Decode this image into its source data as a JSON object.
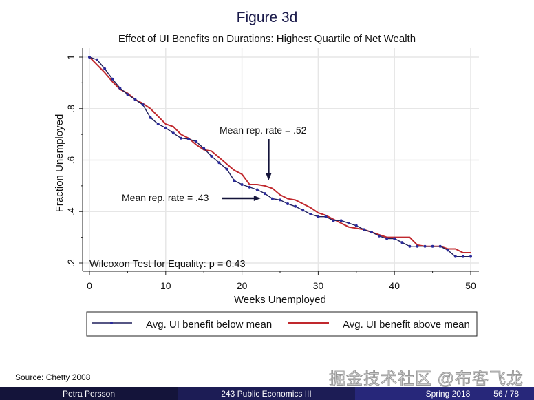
{
  "slide": {
    "source": "Source:  Chetty 2008",
    "watermark": "掘金技术社区 @布客飞龙",
    "footer": {
      "author": "Petra Persson",
      "course": "243 Public Economics III",
      "term": "Spring 2018",
      "page": "56 / 78"
    }
  },
  "colors": {
    "below": "#1f1f5c",
    "below_marker": "#2a2a9a",
    "above": "#c0282d",
    "grid": "#e6e6e6",
    "footer": "#1c1c55"
  },
  "chart_data": {
    "type": "line",
    "title": "Figure 3d",
    "subtitle": "Effect of UI Benefits on Durations: Highest Quartile of Net Wealth",
    "xlabel": "Weeks Unemployed",
    "ylabel": "Fraction Unemployed",
    "xlim": [
      0,
      50
    ],
    "ylim": [
      0.2,
      1.0
    ],
    "xticks": [
      "0",
      "10",
      "20",
      "30",
      "40",
      "50"
    ],
    "yticks": [
      ".2",
      ".4",
      ".6",
      ".8",
      "1"
    ],
    "grid": true,
    "legend_position": "bottom",
    "x": [
      0,
      1,
      2,
      3,
      4,
      5,
      6,
      7,
      8,
      9,
      10,
      11,
      12,
      13,
      14,
      15,
      16,
      17,
      18,
      19,
      20,
      21,
      22,
      23,
      24,
      25,
      26,
      27,
      28,
      29,
      30,
      31,
      32,
      33,
      34,
      35,
      36,
      37,
      38,
      39,
      40,
      41,
      42,
      43,
      44,
      45,
      46,
      47,
      48,
      49,
      50
    ],
    "series": [
      {
        "name": "Avg. UI benefit below mean",
        "markers": true,
        "values": [
          1.0,
          0.99,
          0.955,
          0.915,
          0.88,
          0.855,
          0.835,
          0.815,
          0.765,
          0.74,
          0.725,
          0.705,
          0.685,
          0.682,
          0.672,
          0.645,
          0.615,
          0.59,
          0.565,
          0.52,
          0.505,
          0.495,
          0.485,
          0.47,
          0.45,
          0.445,
          0.43,
          0.42,
          0.405,
          0.39,
          0.38,
          0.38,
          0.365,
          0.365,
          0.355,
          0.345,
          0.33,
          0.32,
          0.305,
          0.295,
          0.295,
          0.28,
          0.265,
          0.265,
          0.265,
          0.265,
          0.265,
          0.25,
          0.225,
          0.225,
          0.225
        ]
      },
      {
        "name": "Avg. UI benefit above mean",
        "markers": false,
        "values": [
          1.0,
          0.97,
          0.94,
          0.905,
          0.875,
          0.86,
          0.835,
          0.82,
          0.8,
          0.77,
          0.74,
          0.73,
          0.7,
          0.685,
          0.66,
          0.64,
          0.635,
          0.61,
          0.585,
          0.56,
          0.545,
          0.505,
          0.505,
          0.5,
          0.49,
          0.465,
          0.45,
          0.445,
          0.43,
          0.415,
          0.395,
          0.385,
          0.37,
          0.355,
          0.34,
          0.335,
          0.33,
          0.32,
          0.31,
          0.3,
          0.3,
          0.3,
          0.3,
          0.27,
          0.265,
          0.265,
          0.265,
          0.255,
          0.255,
          0.24,
          0.24
        ]
      }
    ],
    "annotations": [
      {
        "text": "Mean rep. rate = .52",
        "arrow": "down",
        "at": [
          23.5,
          0.505
        ]
      },
      {
        "text": "Mean rep. rate = .43",
        "arrow": "right",
        "at": [
          23,
          0.47
        ]
      },
      {
        "text": "Wilcoxon Test for Equality: p = 0.43"
      }
    ]
  }
}
